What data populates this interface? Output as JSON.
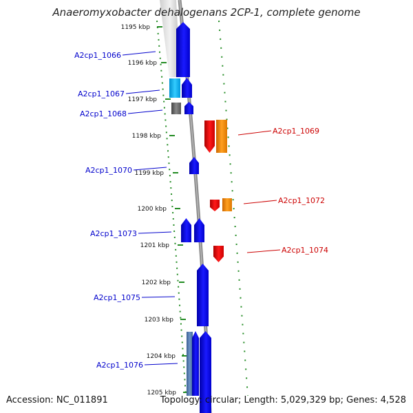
{
  "title": "Anaeromyxobacter dehalogenans 2CP-1, complete genome",
  "footer": {
    "accession": "Accession: NC_011891",
    "summary": "Topology: circular; Length: 5,029,329 bp; Genes: 4,528"
  },
  "ticks": [
    "1195 kbp",
    "1196 kbp",
    "1197 kbp",
    "1198 kbp",
    "1199 kbp",
    "1200 kbp",
    "1201 kbp",
    "1202 kbp",
    "1203 kbp",
    "1204 kbp",
    "1205 kbp"
  ],
  "genes": [
    {
      "name": "A2cp1_1066",
      "strand": "minus",
      "label_color": "#0000cc"
    },
    {
      "name": "A2cp1_1067",
      "strand": "minus",
      "label_color": "#0000cc"
    },
    {
      "name": "A2cp1_1068",
      "strand": "minus",
      "label_color": "#0000cc"
    },
    {
      "name": "A2cp1_1069",
      "strand": "plus",
      "label_color": "#cc0000"
    },
    {
      "name": "A2cp1_1070",
      "strand": "minus",
      "label_color": "#0000cc"
    },
    {
      "name": "A2cp1_1072",
      "strand": "plus",
      "label_color": "#cc0000"
    },
    {
      "name": "A2cp1_1073",
      "strand": "minus",
      "label_color": "#0000cc"
    },
    {
      "name": "A2cp1_1074",
      "strand": "plus",
      "label_color": "#cc0000"
    },
    {
      "name": "A2cp1_1075",
      "strand": "minus",
      "label_color": "#0000cc"
    },
    {
      "name": "A2cp1_1076",
      "strand": "minus",
      "label_color": "#0000cc"
    }
  ],
  "colors": {
    "cds_minus": "#0000ee",
    "cds_plus": "#ee0000",
    "rna_plus": "#ff8c00",
    "tick_marks": "#228b22",
    "backbone": "#888888"
  }
}
